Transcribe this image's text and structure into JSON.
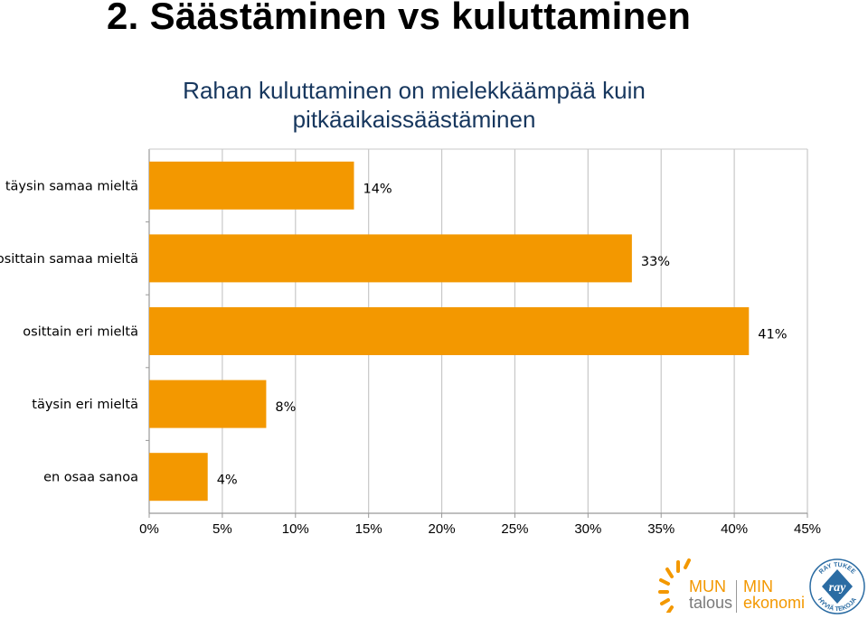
{
  "heading": "2. Säästäminen vs kuluttaminen",
  "chart_data": {
    "type": "bar",
    "orientation": "horizontal",
    "title_lines": [
      "Rahan kuluttaminen on mielekkäämpää kuin",
      "pitkäaikaissäästäminen"
    ],
    "categories": [
      "täysin samaa mieltä",
      "osittain samaa mieltä",
      "osittain eri mieltä",
      "täysin eri mieltä",
      "en osaa sanoa"
    ],
    "values": [
      14,
      33,
      41,
      8,
      4
    ],
    "value_labels": [
      "14%",
      "33%",
      "41%",
      "8%",
      "4%"
    ],
    "xlim": [
      0,
      45
    ],
    "xticks": [
      "0%",
      "5%",
      "10%",
      "15%",
      "20%",
      "25%",
      "30%",
      "35%",
      "40%",
      "45%"
    ],
    "grid": true,
    "bar_color": "#f39800"
  },
  "logos": {
    "brand_top_left": "MUN",
    "brand_top_right": "MIN",
    "brand_bottom_left": "talous",
    "brand_bottom_right": "ekonomi",
    "seal_center": "ray",
    "seal_top": "RAY TUKEE",
    "seal_bottom": "HYVIÄ TEKOJA"
  }
}
